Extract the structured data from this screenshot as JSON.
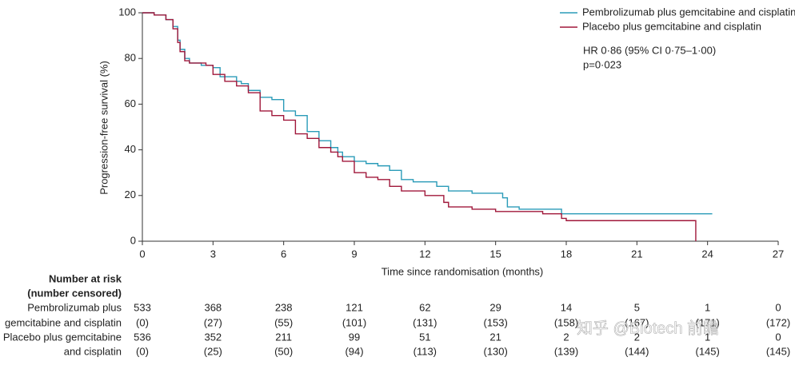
{
  "chart_data": {
    "type": "step",
    "x_label": "Time since randomisation (months)",
    "y_label": "Progression-free survival (%)",
    "xlim": [
      0,
      27
    ],
    "xticks": [
      0,
      3,
      6,
      9,
      12,
      15,
      18,
      21,
      24,
      27
    ],
    "ylim": [
      0,
      100
    ],
    "yticks": [
      0,
      20,
      40,
      60,
      80,
      100
    ],
    "series": [
      {
        "name": "Pembrolizumab plus gemcitabine and cisplatin",
        "color": "#2a9bb8",
        "x": [
          0,
          0.5,
          1,
          1.3,
          1.5,
          1.6,
          1.8,
          2,
          2.5,
          3,
          3.3,
          4,
          4.2,
          4.5,
          5,
          5.5,
          6,
          6.5,
          7,
          7.5,
          8,
          8.3,
          8.5,
          9,
          9.5,
          10,
          10.5,
          11,
          11.5,
          12.5,
          13,
          14,
          15,
          15.3,
          15.5,
          16,
          17.8,
          24.2
        ],
        "values": [
          100,
          99,
          97,
          94,
          88,
          84,
          80,
          78,
          77,
          76,
          72,
          70,
          69,
          66,
          63,
          62,
          57,
          55,
          48,
          44,
          41,
          39,
          37,
          35,
          34,
          33,
          31,
          27,
          26,
          24,
          22,
          21,
          21,
          19,
          15,
          14,
          12,
          12
        ]
      },
      {
        "name": "Placebo plus gemcitabine and cisplatin",
        "color": "#a0173a",
        "x": [
          0,
          0.5,
          1,
          1.3,
          1.5,
          1.6,
          1.8,
          2,
          2.7,
          3,
          3.5,
          4,
          4.5,
          5,
          5.5,
          6,
          6.5,
          7,
          7.5,
          8,
          8.3,
          8.5,
          9,
          9.5,
          10,
          10.5,
          11,
          12,
          12.8,
          13,
          14,
          15,
          15.5,
          17,
          17.8,
          18,
          23.5,
          23.5
        ],
        "values": [
          100,
          99,
          97,
          93,
          87,
          83,
          79,
          78,
          77,
          73,
          70,
          68,
          65,
          57,
          55,
          53,
          47,
          45,
          41,
          39,
          37,
          35,
          30,
          28,
          27,
          24,
          22,
          20,
          17,
          15,
          14,
          13,
          13,
          12,
          10,
          9,
          8,
          0
        ]
      }
    ],
    "annotations": [
      "HR 0·86 (95% CI 0·75–1·00)",
      "p=0·023"
    ],
    "risk_table": {
      "title": "Number at risk",
      "subtitle": "(number censored)",
      "rows": [
        {
          "label": [
            "Pembrolizumab plus",
            "gemcitabine and cisplatin"
          ],
          "at_risk": [
            533,
            368,
            238,
            121,
            62,
            29,
            14,
            5,
            1,
            0
          ],
          "censored": [
            0,
            27,
            55,
            101,
            131,
            153,
            158,
            167,
            171,
            172
          ],
          "censored_labels": [
            "(0)",
            "(27)",
            "(55)",
            "(101)",
            "(131)",
            "(153)",
            "(158)",
            "(167)",
            "(171)",
            "(172)"
          ]
        },
        {
          "label": [
            "Placebo plus gemcitabine",
            "and cisplatin"
          ],
          "at_risk": [
            536,
            352,
            211,
            99,
            51,
            21,
            2,
            2,
            1,
            0
          ],
          "censored": [
            0,
            25,
            50,
            94,
            113,
            130,
            139,
            144,
            145,
            145
          ],
          "censored_labels": [
            "(0)",
            "(25)",
            "(50)",
            "(94)",
            "(113)",
            "(130)",
            "(139)",
            "(144)",
            "(145)",
            "(145)"
          ]
        }
      ]
    }
  },
  "watermark": "知乎 @Biotech 前瞻"
}
